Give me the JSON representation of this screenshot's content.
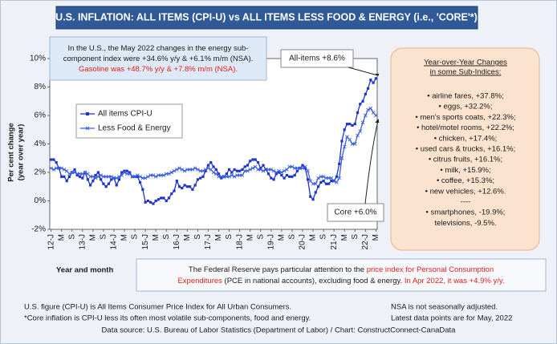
{
  "chart_data": {
    "type": "line",
    "title": "U.S. INFLATION: ALL ITEMS (CPI-U) vs ALL ITEMS LESS FOOD & ENERGY (i.e., 'CORE'*)",
    "ylabel": [
      "Per cent change",
      "(year over year)"
    ],
    "xlabel": "Year and month",
    "categories": [
      "12-J",
      null,
      null,
      null,
      "M",
      null,
      null,
      null,
      "S",
      null,
      null,
      null,
      "13-J",
      null,
      null,
      null,
      "M",
      null,
      null,
      null,
      "S",
      null,
      null,
      null,
      "14-J",
      null,
      null,
      null,
      "M",
      null,
      null,
      null,
      "S",
      null,
      null,
      null,
      "15-J",
      null,
      null,
      null,
      "M",
      null,
      null,
      null,
      "S",
      null,
      null,
      null,
      "16-J",
      null,
      null,
      null,
      "M",
      null,
      null,
      null,
      "S",
      null,
      null,
      null,
      "17-J",
      null,
      null,
      null,
      "M",
      null,
      null,
      null,
      "S",
      null,
      null,
      null,
      "18-J",
      null,
      null,
      null,
      "M",
      null,
      null,
      null,
      "S",
      null,
      null,
      null,
      "19-J",
      null,
      null,
      null,
      "M",
      null,
      null,
      null,
      "S",
      null,
      null,
      null,
      "20-J",
      null,
      null,
      null,
      "M",
      null,
      null,
      null,
      "S",
      null,
      null,
      null,
      "21-J",
      null,
      null,
      null,
      "M",
      null,
      null,
      null,
      "S",
      null,
      null,
      null,
      "22-J",
      null,
      null,
      null,
      "M"
    ],
    "series": [
      {
        "name": "All items CPI-U",
        "color": "#1f35c8",
        "marker": "square",
        "values": [
          2.9,
          2.9,
          2.7,
          2.3,
          1.7,
          1.7,
          1.4,
          1.7,
          2.0,
          2.2,
          1.8,
          1.7,
          1.6,
          2.0,
          1.5,
          1.1,
          1.4,
          1.8,
          2.0,
          1.5,
          1.2,
          1.0,
          1.2,
          1.5,
          1.6,
          1.1,
          1.5,
          2.0,
          2.1,
          2.1,
          2.0,
          1.7,
          1.7,
          1.7,
          1.3,
          0.8,
          -0.1,
          0.0,
          -0.1,
          -0.2,
          0.0,
          0.1,
          0.2,
          0.2,
          0.0,
          0.2,
          0.5,
          0.7,
          1.4,
          1.0,
          0.9,
          1.1,
          1.0,
          1.0,
          0.8,
          1.1,
          1.5,
          1.6,
          1.7,
          2.1,
          2.5,
          2.7,
          2.4,
          2.2,
          1.9,
          1.6,
          1.7,
          1.9,
          2.2,
          2.0,
          2.2,
          2.1,
          2.1,
          2.2,
          2.4,
          2.5,
          2.8,
          2.9,
          2.9,
          2.7,
          2.3,
          2.5,
          2.2,
          1.9,
          1.6,
          1.5,
          1.9,
          2.0,
          1.8,
          1.6,
          1.8,
          1.7,
          1.7,
          1.8,
          2.1,
          2.3,
          2.5,
          2.3,
          1.5,
          0.3,
          0.1,
          0.6,
          1.0,
          1.3,
          1.4,
          1.2,
          1.2,
          1.4,
          1.4,
          1.7,
          2.6,
          4.2,
          5.0,
          5.4,
          5.4,
          5.3,
          5.4,
          6.2,
          6.8,
          7.0,
          7.5,
          7.9,
          8.5,
          8.3,
          8.6
        ]
      },
      {
        "name": "Less Food & Energy",
        "color": "#3a5ee0",
        "marker": "x",
        "values": [
          2.3,
          2.2,
          2.3,
          2.3,
          2.3,
          2.2,
          2.1,
          1.9,
          2.0,
          2.0,
          1.9,
          1.9,
          1.9,
          2.0,
          1.9,
          1.7,
          1.7,
          1.6,
          1.7,
          1.8,
          1.7,
          1.7,
          1.7,
          1.7,
          1.6,
          1.6,
          1.7,
          1.8,
          2.0,
          1.9,
          1.9,
          1.7,
          1.7,
          1.8,
          1.7,
          1.6,
          1.6,
          1.7,
          1.8,
          1.8,
          1.7,
          1.8,
          1.8,
          1.8,
          1.9,
          1.9,
          2.0,
          2.1,
          2.2,
          2.3,
          2.2,
          2.1,
          2.2,
          2.2,
          2.2,
          2.3,
          2.2,
          2.1,
          2.1,
          2.2,
          2.3,
          2.2,
          2.0,
          1.9,
          1.7,
          1.7,
          1.7,
          1.7,
          1.7,
          1.8,
          1.7,
          1.8,
          1.8,
          1.8,
          2.1,
          2.1,
          2.2,
          2.3,
          2.4,
          2.2,
          2.2,
          2.1,
          2.2,
          2.2,
          2.2,
          2.1,
          2.0,
          2.1,
          2.0,
          2.1,
          2.2,
          2.4,
          2.4,
          2.3,
          2.3,
          2.3,
          2.3,
          2.4,
          2.1,
          1.4,
          1.2,
          1.2,
          1.6,
          1.7,
          1.7,
          1.6,
          1.6,
          1.6,
          1.4,
          1.3,
          1.6,
          3.0,
          3.8,
          4.5,
          4.3,
          4.0,
          4.0,
          4.6,
          4.9,
          5.5,
          6.0,
          6.4,
          6.5,
          6.2,
          6.0
        ]
      }
    ],
    "ylim": [
      -2,
      10
    ],
    "yticks": [
      {
        "value": -2,
        "label": "-2%"
      },
      {
        "value": 0,
        "label": "0%"
      },
      {
        "value": 2,
        "label": "2%"
      },
      {
        "value": 4,
        "label": "4%"
      },
      {
        "value": 6,
        "label": "6%"
      },
      {
        "value": 8,
        "label": "8%"
      },
      {
        "value": 10,
        "label": "10%"
      }
    ],
    "grid": false,
    "legend": "upper left",
    "annotations": [
      {
        "text": "All-items +8.6%",
        "series": 0
      },
      {
        "text": "Core +6.0%",
        "series": 1
      }
    ],
    "info_box": [
      [
        {
          "text": "In the U.S., the May 2022 changes in the energy sub-",
          "color": "#1a1a1a"
        }
      ],
      [
        {
          "text": "component index were +34.6% y/y & +6.1% m/m (NSA).",
          "color": "#1a1a1a"
        }
      ],
      [
        {
          "text": "Gasoline was +48.7% y/y & +7.8% m/m (NSA).",
          "color": "#e0201c"
        }
      ]
    ],
    "side_box": {
      "title": [
        "Year-over-Year Changes",
        "in some Sub-Indices:"
      ],
      "items": [
        "• airline fares, +37.8%;",
        "• eggs, +32.2%;",
        "• men's sports coats, +22.3%;",
        "• hotel/motel rooms, +22.2%;",
        "• chicken, +17.4%;",
        "• used cars & trucks, +16.1%;",
        "• citrus fruits, +16.1%;",
        "• milk, +15.9%;",
        "• coffee, +15.3%;",
        "• new vehicles, +12.6%.",
        "----",
        "• smartphones, -19.9%;",
        "televisions, -9.5%."
      ]
    },
    "fed_box": [
      [
        {
          "text": "The Federal Reserve pays particular attention to the ",
          "color": "#1a1a1a"
        },
        {
          "text": "price index for Personal Consumption",
          "color": "#e0201c"
        }
      ],
      [
        {
          "text": "Expenditures",
          "color": "#e0201c"
        },
        {
          "text": " (PCE in national accounts), excluding food & energy. ",
          "color": "#1a1a1a"
        },
        {
          "text": "In Apr 2022, it was +4.9% y/y.",
          "color": "#e0201c"
        }
      ]
    ],
    "notes_left": [
      "U.S. figure (CPI-U) is All Items Consumer Price Index for All Urban Consumers.",
      "*Core inflation is CPI-U less its often most volatile sub-components, food and energy."
    ],
    "notes_right": [
      "NSA is not seasonally adjusted.",
      "Latest data points are for May, 2022"
    ],
    "source": "Data source: U.S. Bureau of Labor Statistics (Department of Labor) / Chart: ConstructConnect-CanaData"
  }
}
